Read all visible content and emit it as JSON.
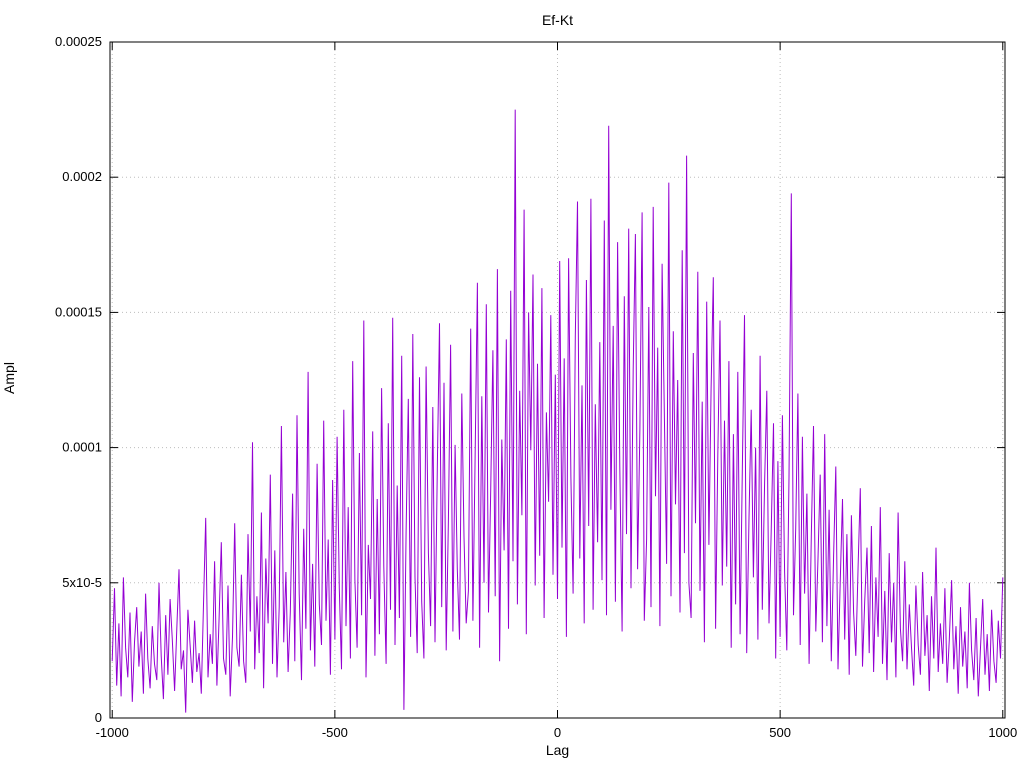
{
  "chart_data": {
    "type": "line",
    "title": "Ef-Kt",
    "xlabel": "Lag",
    "ylabel": "Ampl",
    "xlim": [
      -1005,
      1005
    ],
    "ylim": [
      0,
      0.00025
    ],
    "grid": true,
    "legend": "none",
    "line_color": "#9400d3",
    "background": "#ffffff",
    "x_ticks": [
      {
        "v": -1000,
        "label": "-1000"
      },
      {
        "v": -500,
        "label": "-500"
      },
      {
        "v": 0,
        "label": "0"
      },
      {
        "v": 500,
        "label": "500"
      },
      {
        "v": 1000,
        "label": "1000"
      }
    ],
    "y_ticks": [
      {
        "v": 0,
        "label": "0"
      },
      {
        "v": 5,
        "label": "5x10-5"
      },
      {
        "v": 10,
        "label": "0.0001"
      },
      {
        "v": 15,
        "label": "0.00015"
      },
      {
        "v": 20,
        "label": "0.0002"
      },
      {
        "v": 25,
        "label": "0.00025"
      }
    ],
    "value_scale": 1e-05,
    "x_start": -1000,
    "x_step": 5,
    "values": [
      2.1,
      4.8,
      1.2,
      3.5,
      0.8,
      5.2,
      2.6,
      1.5,
      3.9,
      0.6,
      2.8,
      4.1,
      1.9,
      3.2,
      0.9,
      4.6,
      2.2,
      1.1,
      3.4,
      2.0,
      1.4,
      5.0,
      2.3,
      0.7,
      3.8,
      1.6,
      4.4,
      2.9,
      1.0,
      3.3,
      5.5,
      1.8,
      2.5,
      0.2,
      4.0,
      2.7,
      1.3,
      3.6,
      1.7,
      2.4,
      0.9,
      4.2,
      7.4,
      1.5,
      3.1,
      2.0,
      5.8,
      1.2,
      3.7,
      6.5,
      2.2,
      1.6,
      4.9,
      0.8,
      3.0,
      7.2,
      2.6,
      1.9,
      5.3,
      2.1,
      1.3,
      6.8,
      3.2,
      10.2,
      1.8,
      4.5,
      2.4,
      7.6,
      1.1,
      5.9,
      3.5,
      9.0,
      2.0,
      6.2,
      1.5,
      4.1,
      10.8,
      2.8,
      5.4,
      1.7,
      3.9,
      8.3,
      2.1,
      11.2,
      4.6,
      1.4,
      7.0,
      3.3,
      12.8,
      2.5,
      5.7,
      1.9,
      9.4,
      4.2,
      2.7,
      11.0,
      3.6,
      6.6,
      1.6,
      8.8,
      2.9,
      10.4,
      4.8,
      1.8,
      11.4,
      3.4,
      7.8,
      2.2,
      13.2,
      5.1,
      2.6,
      9.8,
      3.8,
      14.7,
      1.5,
      6.4,
      4.4,
      10.6,
      2.3,
      8.1,
      3.1,
      12.2,
      5.6,
      2.0,
      10.9,
      4.0,
      14.8,
      2.7,
      8.6,
      3.7,
      13.4,
      0.3,
      6.9,
      11.8,
      3.0,
      14.2,
      5.2,
      2.4,
      12.6,
      4.3,
      2.2,
      13.0,
      6.1,
      3.4,
      11.5,
      2.8,
      9.2,
      14.6,
      4.1,
      12.4,
      2.5,
      7.3,
      13.8,
      3.2,
      10.1,
      5.5,
      2.9,
      12.0,
      6.7,
      3.5,
      4.7,
      14.4,
      3.6,
      9.6,
      16.1,
      2.6,
      11.9,
      5.0,
      15.3,
      3.9,
      8.4,
      13.6,
      4.5,
      16.6,
      2.1,
      10.3,
      6.2,
      14.0,
      3.3,
      15.8,
      5.8,
      22.5,
      4.2,
      12.1,
      7.5,
      18.8,
      3.1,
      15.0,
      9.9,
      16.4,
      4.9,
      13.1,
      6.0,
      15.9,
      3.7,
      11.3,
      8.0,
      14.9,
      5.3,
      12.7,
      4.4,
      16.9,
      6.3,
      13.3,
      3.0,
      17.0,
      8.9,
      4.6,
      14.1,
      19.1,
      5.9,
      12.3,
      3.5,
      16.2,
      7.1,
      19.2,
      4.0,
      11.6,
      6.5,
      13.9,
      5.1,
      18.4,
      3.8,
      21.9,
      7.7,
      14.5,
      4.3,
      17.6,
      9.3,
      3.2,
      15.6,
      6.8,
      18.1,
      4.8,
      12.9,
      17.9,
      5.5,
      10.7,
      18.7,
      3.6,
      6.6,
      15.2,
      4.1,
      18.9,
      8.2,
      13.7,
      3.4,
      16.8,
      11.1,
      5.7,
      19.8,
      4.5,
      14.3,
      7.9,
      12.5,
      3.9,
      17.3,
      6.1,
      20.8,
      5.0,
      3.7,
      13.5,
      7.2,
      16.5,
      4.7,
      11.7,
      2.8,
      15.4,
      6.4,
      12.2,
      16.3,
      3.3,
      9.7,
      14.7,
      4.9,
      11.0,
      5.6,
      13.2,
      2.6,
      10.5,
      4.2,
      12.8,
      3.1,
      9.1,
      14.9,
      2.4,
      7.4,
      11.4,
      5.2,
      10.0,
      2.9,
      13.4,
      4.0,
      8.7,
      12.1,
      3.5,
      6.9,
      10.9,
      2.2,
      9.5,
      3.0,
      11.2,
      5.4,
      2.5,
      8.9,
      19.4,
      3.8,
      7.0,
      12.0,
      2.7,
      10.4,
      4.6,
      8.3,
      2.0,
      6.7,
      10.8,
      3.2,
      5.9,
      9.0,
      2.8,
      10.5,
      3.4,
      7.7,
      2.1,
      6.0,
      9.3,
      1.8,
      5.0,
      8.1,
      2.9,
      6.8,
      1.6,
      7.5,
      3.9,
      2.3,
      5.6,
      8.5,
      1.9,
      4.3,
      6.3,
      2.4,
      7.1,
      1.7,
      5.2,
      3.0,
      7.8,
      2.0,
      4.7,
      1.4,
      6.1,
      2.8,
      5.0,
      1.5,
      7.6,
      3.3,
      2.1,
      5.8,
      1.8,
      4.2,
      2.6,
      1.2,
      4.9,
      2.7,
      1.6,
      5.4,
      2.3,
      3.8,
      1.0,
      4.5,
      2.2,
      6.3,
      1.7,
      3.5,
      2.0,
      4.8,
      1.3,
      2.9,
      5.1,
      1.8,
      3.4,
      0.9,
      4.1,
      1.9,
      3.2,
      1.1,
      5.0,
      2.5,
      1.4,
      3.7,
      0.8,
      2.6,
      4.4,
      1.6,
      3.1,
      1.0,
      4.0,
      2.1,
      1.3,
      3.6,
      2.2,
      5.2
    ]
  }
}
